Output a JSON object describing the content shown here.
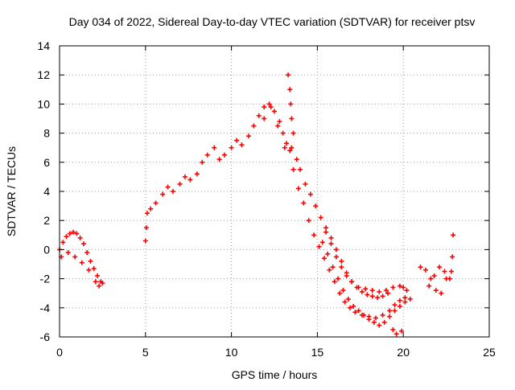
{
  "chart_data": {
    "type": "scatter",
    "title": "Day 034 of 2022, Sidereal Day-to-day VTEC variation (SDTVAR) for receiver ptsv",
    "xlabel": "GPS time / hours",
    "ylabel": "SDTVAR / TECUs",
    "xlim": [
      0,
      25
    ],
    "ylim": [
      -6,
      14
    ],
    "xticks": [
      0,
      5,
      10,
      15,
      20,
      25
    ],
    "yticks": [
      -6,
      -4,
      -2,
      0,
      2,
      4,
      6,
      8,
      10,
      12,
      14
    ],
    "xtick_labels": [
      "0",
      "5",
      "10",
      "15",
      "20",
      "25"
    ],
    "ytick_labels": [
      "-6",
      "-4",
      "-2",
      "0",
      "2",
      "4",
      "6",
      "8",
      "10",
      "12",
      "14"
    ],
    "grid": true,
    "marker": "+",
    "series_color": "#ff0000",
    "series": [
      {
        "name": "SDTVAR",
        "x": [
          0.0,
          0.2,
          0.4,
          0.6,
          0.8,
          1.0,
          1.2,
          1.4,
          1.6,
          1.8,
          2.0,
          2.2,
          2.4,
          2.5,
          0.1,
          0.5,
          0.9,
          1.3,
          1.7,
          2.1,
          2.3,
          5.0,
          5.05,
          5.1,
          5.3,
          5.6,
          6.0,
          6.3,
          6.6,
          7.0,
          7.3,
          7.6,
          8.0,
          8.3,
          8.6,
          9.0,
          9.3,
          9.6,
          10.0,
          10.3,
          10.6,
          11.0,
          11.3,
          11.6,
          11.9,
          12.2,
          12.5,
          12.8,
          13.0,
          13.2,
          13.5,
          13.8,
          14.0,
          14.3,
          14.6,
          14.9,
          15.2,
          15.5,
          15.8,
          16.1,
          16.4,
          16.7,
          17.0,
          17.4,
          17.8,
          18.2,
          18.6,
          19.0,
          19.4,
          19.8,
          20.0,
          20.2,
          11.9,
          12.3,
          12.7,
          13.1,
          13.4,
          13.6,
          13.9,
          14.2,
          14.5,
          14.8,
          15.1,
          15.4,
          15.7,
          16.0,
          16.3,
          16.6,
          16.9,
          17.2,
          17.6,
          18.0,
          18.4,
          18.8,
          19.2,
          19.5,
          19.8,
          20.1,
          13.3,
          13.4,
          13.45,
          13.5,
          13.6,
          15.3,
          15.6,
          15.9,
          16.2,
          16.5,
          16.8,
          17.1,
          17.4,
          17.7,
          18.0,
          18.3,
          18.6,
          18.9,
          19.2,
          19.5,
          19.8,
          20.1,
          20.4,
          15.5,
          15.8,
          16.1,
          16.4,
          16.7,
          17.0,
          17.3,
          17.6,
          17.9,
          18.2,
          18.5,
          18.8,
          19.1,
          19.4,
          19.6,
          19.9,
          21.0,
          21.3,
          21.6,
          21.9,
          22.2,
          22.5,
          22.8,
          22.9,
          21.5,
          21.8,
          22.1,
          22.4,
          22.7,
          22.85
        ],
        "y": [
          0.0,
          0.5,
          0.9,
          1.1,
          1.2,
          1.1,
          0.8,
          0.4,
          -0.2,
          -0.8,
          -1.3,
          -1.8,
          -2.2,
          -2.3,
          -0.5,
          -0.2,
          -0.5,
          -0.9,
          -1.4,
          -2.2,
          -2.5,
          0.6,
          1.5,
          2.5,
          2.8,
          3.2,
          3.8,
          4.3,
          4.0,
          4.5,
          5.0,
          4.8,
          5.2,
          6.0,
          6.5,
          7.0,
          6.2,
          6.5,
          7.0,
          7.5,
          7.2,
          7.8,
          8.5,
          9.2,
          9.8,
          10.0,
          9.5,
          8.8,
          8.0,
          7.3,
          7.0,
          6.2,
          5.5,
          4.5,
          3.8,
          3.0,
          2.2,
          1.2,
          0.4,
          -0.5,
          -1.2,
          -1.8,
          -2.2,
          -2.6,
          -2.7,
          -2.8,
          -2.9,
          -2.8,
          -2.6,
          -2.5,
          -2.6,
          -2.8,
          9.0,
          9.8,
          8.5,
          7.0,
          6.8,
          5.5,
          4.2,
          3.2,
          2.0,
          1.0,
          0.2,
          -0.6,
          -1.4,
          -2.2,
          -3.0,
          -3.6,
          -4.0,
          -4.3,
          -4.5,
          -4.6,
          -4.7,
          -4.5,
          -4.2,
          -3.8,
          -3.5,
          -3.3,
          12.0,
          11.0,
          10.0,
          9.0,
          8.0,
          0.5,
          -0.3,
          -1.2,
          -2.0,
          -2.8,
          -3.4,
          -3.9,
          -4.2,
          -4.5,
          -4.8,
          -5.0,
          -5.2,
          -5.0,
          -4.6,
          -4.2,
          -3.9,
          -3.6,
          -3.4,
          1.5,
          0.8,
          0.0,
          -0.8,
          -1.6,
          -2.2,
          -2.6,
          -2.9,
          -3.1,
          -3.2,
          -3.3,
          -3.2,
          -3.0,
          -5.5,
          -5.8,
          -5.6,
          -1.2,
          -1.4,
          -2.0,
          -2.8,
          -3.0,
          -2.0,
          -1.5,
          1.0,
          -2.5,
          -1.8,
          -1.2,
          -1.5,
          -2.0,
          -0.5
        ]
      }
    ]
  }
}
